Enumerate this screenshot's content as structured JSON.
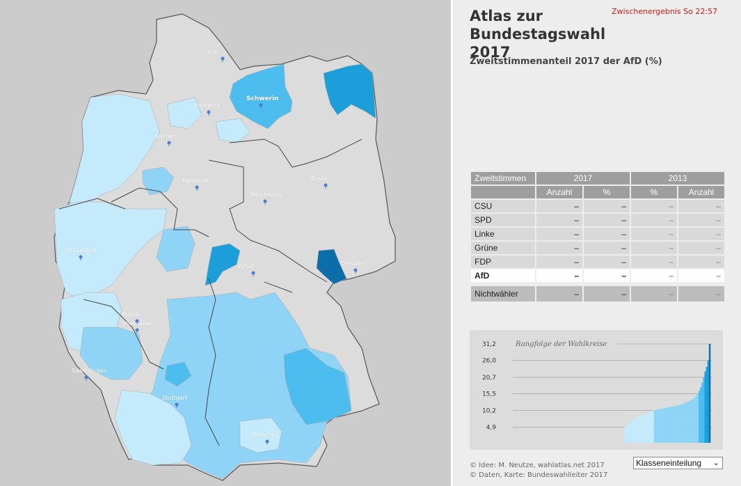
{
  "app": {
    "title": "Atlas zur Bundestagswahl 2017",
    "status": "Zwischenergebnis So 22:57",
    "subtitle": "Zweitstimmenanteil 2017 der AfD (%)"
  },
  "map": {
    "cities": [
      {
        "name": "Kiel",
        "major": false
      },
      {
        "name": "Hamburg",
        "major": false
      },
      {
        "name": "Schwerin",
        "major": true
      },
      {
        "name": "Bremen",
        "major": false
      },
      {
        "name": "Hannover",
        "major": false
      },
      {
        "name": "Berlin",
        "major": false
      },
      {
        "name": "Magdeburg",
        "major": false
      },
      {
        "name": "Düsseldorf",
        "major": false
      },
      {
        "name": "Erfurt",
        "major": false
      },
      {
        "name": "Dresden",
        "major": false
      },
      {
        "name": "Wiesbaden",
        "major": false
      },
      {
        "name": "Mainz",
        "major": false
      },
      {
        "name": "Saarbrücken",
        "major": false
      },
      {
        "name": "Stuttgart",
        "major": false
      },
      {
        "name": "München",
        "major": false
      }
    ],
    "colors": {
      "background": "#cccccc",
      "no_data": "#dcdcdc",
      "class1": "#c5eafb",
      "class2": "#8fd4f7",
      "class3": "#4dbcee",
      "class4": "#1b9ed9",
      "class5": "#0b6ea8",
      "border": "#555555"
    }
  },
  "table": {
    "header": {
      "label": "Zweitstimmen",
      "year1": "2017",
      "year2": "2013"
    },
    "subheader": {
      "anzahl_2017": "Anzahl",
      "pct_2017": "%",
      "pct_2013": "%",
      "anzahl_2013": "Anzahl"
    },
    "rows": [
      {
        "party": "CSU",
        "anzahl_2017": "–",
        "pct_2017": "–",
        "pct_2013": "–",
        "anzahl_2013": "–"
      },
      {
        "party": "SPD",
        "anzahl_2017": "–",
        "pct_2017": "–",
        "pct_2013": "–",
        "anzahl_2013": "–"
      },
      {
        "party": "Linke",
        "anzahl_2017": "–",
        "pct_2017": "–",
        "pct_2013": "–",
        "anzahl_2013": "–"
      },
      {
        "party": "Grüne",
        "anzahl_2017": "–",
        "pct_2017": "–",
        "pct_2013": "–",
        "anzahl_2013": "–"
      },
      {
        "party": "FDP",
        "anzahl_2017": "–",
        "pct_2017": "–",
        "pct_2013": "–",
        "anzahl_2013": "–"
      },
      {
        "party": "AfD",
        "anzahl_2017": "–",
        "pct_2017": "–",
        "pct_2013": "–",
        "anzahl_2013": "–"
      }
    ],
    "nonvoters": {
      "party": "Nichtwähler",
      "anzahl_2017": "–",
      "pct_2017": "–",
      "pct_2013": "–",
      "anzahl_2013": "–"
    }
  },
  "chart_data": {
    "type": "area",
    "title": "Rangfolge der Wahlkreise",
    "xlabel": "",
    "ylabel": "",
    "ylim": [
      0,
      31.2
    ],
    "yticks": [
      4.9,
      10.2,
      15.5,
      20.7,
      26.0,
      31.2
    ],
    "ytick_labels": [
      "4,9",
      "10,2",
      "15,5",
      "20,7",
      "26,0",
      "31,2"
    ],
    "class_breaks": [
      10.2,
      15.5,
      20.7,
      26.0
    ],
    "class_colors": [
      "#c5eafb",
      "#8fd4f7",
      "#4dbcee",
      "#1b9ed9",
      "#0b6ea8"
    ],
    "values": [
      4.9,
      5.3,
      5.8,
      6.2,
      6.6,
      7.0,
      7.3,
      7.6,
      7.9,
      8.1,
      8.4,
      8.6,
      8.8,
      9.0,
      9.2,
      9.4,
      9.6,
      9.8,
      10.0,
      10.2,
      10.3,
      10.4,
      10.5,
      10.6,
      10.7,
      10.8,
      10.9,
      11.0,
      11.1,
      11.2,
      11.3,
      11.4,
      11.5,
      11.6,
      11.7,
      11.8,
      11.9,
      12.0,
      12.1,
      12.3,
      12.5,
      12.7,
      12.9,
      13.1,
      13.4,
      13.7,
      14.0,
      14.4,
      14.9,
      15.5,
      16.4,
      17.5,
      19.0,
      20.7,
      22.5,
      24.0,
      26.0,
      31.2
    ]
  },
  "footer": {
    "credit1": "© Idee: M. Neutze, wahlatlas.net 2017",
    "credit2": "© Daten, Karte: Bundeswahlleiter 2017",
    "select_value": "Klasseneinteilung"
  }
}
